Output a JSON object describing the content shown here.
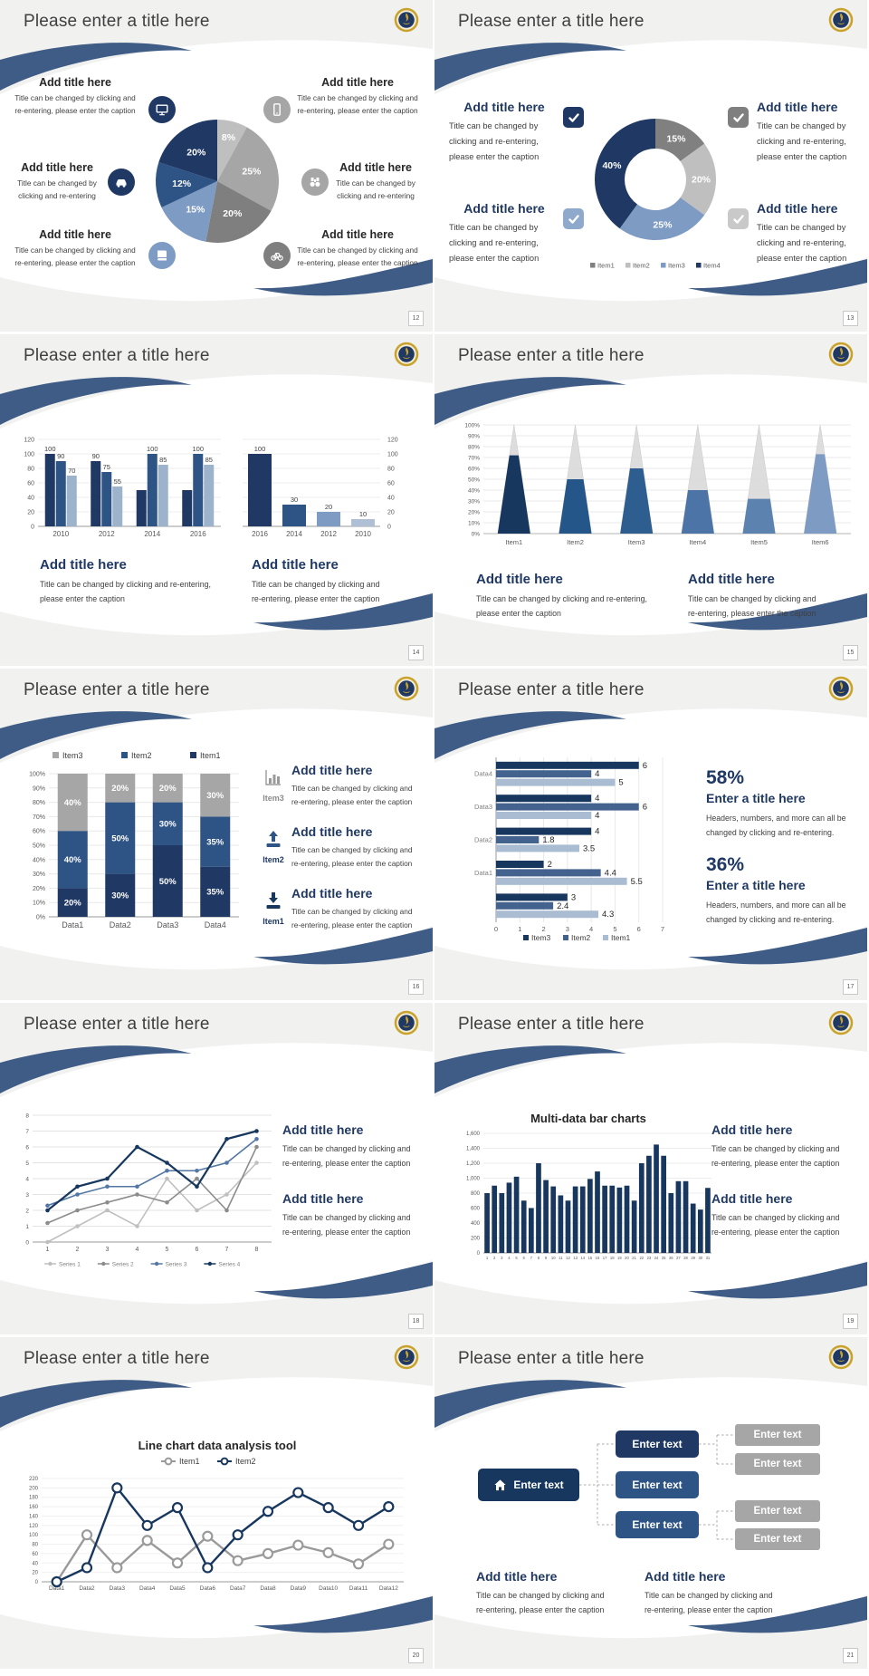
{
  "common": {
    "slide_title": "Please enter a title here",
    "add_title": "Add title here",
    "enter_title": "Enter a title here",
    "enter_text": "Enter text",
    "cap1a": "Title can be changed by clicking and",
    "cap1b": "re-entering, please enter the caption",
    "cap2a": "Title can be changed by clicking and re-entering,",
    "cap2b": "please enter the caption",
    "cap3a": "Title can be changed by",
    "cap3b": "clicking and re-entering,",
    "cap3c": "please enter the caption",
    "cap4a": "Title can be changed by",
    "cap4b": "clicking and re-entering",
    "cap5a": "Headers, numbers, and more can all be",
    "cap5b": "changed by clicking and re-entering.",
    "stat1": "58%",
    "stat2": "36%",
    "colors": {
      "navy": "#1F3864",
      "dark_navy": "#17375E",
      "blue": "#2E5385",
      "steel": "#44628E",
      "slate": "#7E9BC4",
      "light_slate": "#9DB3CC",
      "gray_dark": "#7F7F7F",
      "gray_mid": "#A6A6A6",
      "gray_light": "#BFBFBF",
      "swoosh": "#3E5C85",
      "slide_bg": "#F1F1F0"
    }
  },
  "pages": {
    "s12": "12",
    "s13": "13",
    "s14": "14",
    "s15": "15",
    "s16": "16",
    "s17": "17",
    "s18": "18",
    "s19": "19",
    "s20": "20",
    "s21": "21"
  },
  "slide16_items": {
    "item3": "Item3",
    "item2": "Item2",
    "item1": "Item1"
  },
  "chart_data": [
    {
      "slide": 12,
      "type": "pie",
      "values": [
        8,
        25,
        20,
        15,
        12,
        20
      ],
      "labels": [
        "8%",
        "25%",
        "20%",
        "15%",
        "12%",
        "20%"
      ],
      "colors": [
        "#BFBFBF",
        "#A6A6A6",
        "#7F7F7F",
        "#7E9BC4",
        "#2E5385",
        "#1F3864"
      ]
    },
    {
      "slide": 13,
      "type": "donut",
      "values": [
        15,
        20,
        25,
        40
      ],
      "labels": [
        "15%",
        "20%",
        "25%",
        "40%"
      ],
      "colors": [
        "#808080",
        "#BFBFBF",
        "#7E9BC4",
        "#1F3864"
      ],
      "legend": [
        {
          "label": "Item1",
          "color": "#808080"
        },
        {
          "label": "Item2",
          "color": "#BFBFBF"
        },
        {
          "label": "Item3",
          "color": "#7E9BC4"
        },
        {
          "label": "Item4",
          "color": "#1F3864"
        }
      ]
    },
    {
      "slide": 14,
      "type": "grouped_bar",
      "categories": [
        "2010",
        "2012",
        "2014",
        "2016"
      ],
      "series": [
        {
          "name": "series1",
          "color": "#1F3864",
          "values": [
            100,
            90,
            50,
            50
          ],
          "labels": [
            "100",
            "90",
            "",
            ""
          ]
        },
        {
          "name": "series2",
          "color": "#2E5385",
          "values": [
            90,
            75,
            100,
            100
          ],
          "labels": [
            "90",
            "75",
            "100",
            "100"
          ]
        },
        {
          "name": "series3",
          "color": "#9DB3CC",
          "values": [
            70,
            55,
            85,
            85
          ],
          "labels": [
            "70",
            "55",
            "85",
            "85"
          ]
        }
      ],
      "ylim": [
        0,
        120
      ],
      "ystep": 20,
      "y_axis_side": "left",
      "grid": true
    },
    {
      "slide": 14,
      "type": "bar",
      "categories": [
        "2016",
        "2014",
        "2012",
        "2010"
      ],
      "values": [
        100,
        30,
        20,
        10
      ],
      "labels": [
        "100",
        "30",
        "20",
        "10"
      ],
      "bar_colors": [
        "#1F3864",
        "#2E5385",
        "#7E9BC4",
        "#AEBFD6"
      ],
      "ylim": [
        0,
        120
      ],
      "ystep": 20,
      "y_axis_side": "right",
      "grid": true
    },
    {
      "slide": 15,
      "type": "cone",
      "categories": [
        "Item1",
        "Item2",
        "Item3",
        "Item4",
        "Item5",
        "Item6"
      ],
      "values": [
        72,
        50,
        60,
        40,
        32,
        73
      ],
      "colors": [
        "#17375E",
        "#24568A",
        "#2E5E8F",
        "#4C74A6",
        "#5C82B0",
        "#7E9BC4"
      ],
      "remainder_color": "#D9D9D9",
      "ylim": [
        0,
        100
      ],
      "ystep": 10,
      "ytick_suffix": "%"
    },
    {
      "slide": 16,
      "type": "stacked_bar_100",
      "categories": [
        "Data1",
        "Data2",
        "Data3",
        "Data4"
      ],
      "series": [
        {
          "name": "Item1",
          "color": "#1F3864",
          "values": [
            20,
            30,
            50,
            35
          ]
        },
        {
          "name": "Item2",
          "color": "#2E5385",
          "values": [
            40,
            50,
            30,
            35
          ]
        },
        {
          "name": "Item3",
          "color": "#A6A6A6",
          "values": [
            40,
            20,
            20,
            30
          ]
        }
      ],
      "legend_order": [
        "Item3",
        "Item2",
        "Item1"
      ],
      "ylim": [
        0,
        100
      ],
      "ystep": 10,
      "ytick_suffix": "%",
      "label_suffix": "%"
    },
    {
      "slide": 17,
      "type": "hbar",
      "groups": [
        "Data4",
        "Data3",
        "Data2",
        "Data1",
        ""
      ],
      "series": [
        {
          "name": "Item3",
          "color": "#17375E",
          "values": [
            6,
            4,
            4,
            2,
            3
          ]
        },
        {
          "name": "Item2",
          "color": "#44628E",
          "values": [
            4,
            6,
            1.8,
            4.4,
            2.4
          ]
        },
        {
          "name": "Item1",
          "color": "#A9BCD1",
          "values": [
            5,
            4,
            3.5,
            5.5,
            4.3
          ]
        }
      ],
      "xlim": [
        0,
        7
      ],
      "xstep": 1,
      "legend_position": "bottom"
    },
    {
      "slide": 18,
      "type": "line",
      "x": [
        1,
        2,
        3,
        4,
        5,
        6,
        7,
        8
      ],
      "series": [
        {
          "name": "Series 1",
          "color": "#BFBFBF",
          "values": [
            0,
            1,
            2,
            1,
            4,
            2,
            3,
            5
          ]
        },
        {
          "name": "Series 2",
          "color": "#8C8C8C",
          "values": [
            1.2,
            2,
            2.5,
            3,
            2.5,
            4,
            2,
            6
          ]
        },
        {
          "name": "Series 3",
          "color": "#5377A4",
          "values": [
            2.3,
            3,
            3.5,
            3.5,
            4.5,
            4.5,
            5,
            6.5
          ]
        },
        {
          "name": "Series 4",
          "color": "#17375E",
          "values": [
            2,
            3.5,
            4,
            6,
            5,
            3.5,
            6.5,
            7
          ]
        }
      ],
      "ylim": [
        0,
        8
      ],
      "ystep": 1,
      "legend_position": "bottom",
      "grid": true
    },
    {
      "slide": 19,
      "type": "bar",
      "title": "Multi-data bar charts",
      "categories": [
        "1",
        "2",
        "3",
        "4",
        "5",
        "6",
        "7",
        "8",
        "9",
        "10",
        "11",
        "12",
        "13",
        "14",
        "15",
        "16",
        "17",
        "18",
        "19",
        "20",
        "21",
        "22",
        "23",
        "24",
        "25",
        "26",
        "27",
        "28",
        "29",
        "30",
        "31"
      ],
      "values": [
        800,
        900,
        800,
        940,
        1020,
        700,
        600,
        1200,
        975,
        890,
        770,
        700,
        890,
        890,
        990,
        1090,
        900,
        900,
        875,
        900,
        700,
        1200,
        1300,
        1450,
        1300,
        800,
        960,
        960,
        660,
        580,
        870
      ],
      "color": "#17375E",
      "ylim": [
        0,
        1600
      ],
      "ystep": 200,
      "grid": true
    },
    {
      "slide": 20,
      "type": "line",
      "title": "Line chart data analysis tool",
      "categories": [
        "Data1",
        "Data2",
        "Data3",
        "Data4",
        "Data5",
        "Data6",
        "Data7",
        "Data8",
        "Data9",
        "Data10",
        "Data11",
        "Data12"
      ],
      "series": [
        {
          "name": "Item1",
          "color": "#9A9A9A",
          "values": [
            0,
            100,
            30,
            88,
            40,
            97,
            45,
            60,
            78,
            62,
            38,
            80
          ]
        },
        {
          "name": "Item2",
          "color": "#17375E",
          "values": [
            0,
            30,
            200,
            120,
            158,
            30,
            100,
            150,
            190,
            158,
            120,
            160
          ]
        }
      ],
      "ylim": [
        0,
        220
      ],
      "ystep": 20,
      "marker": "open-circle",
      "legend_position": "top"
    }
  ]
}
